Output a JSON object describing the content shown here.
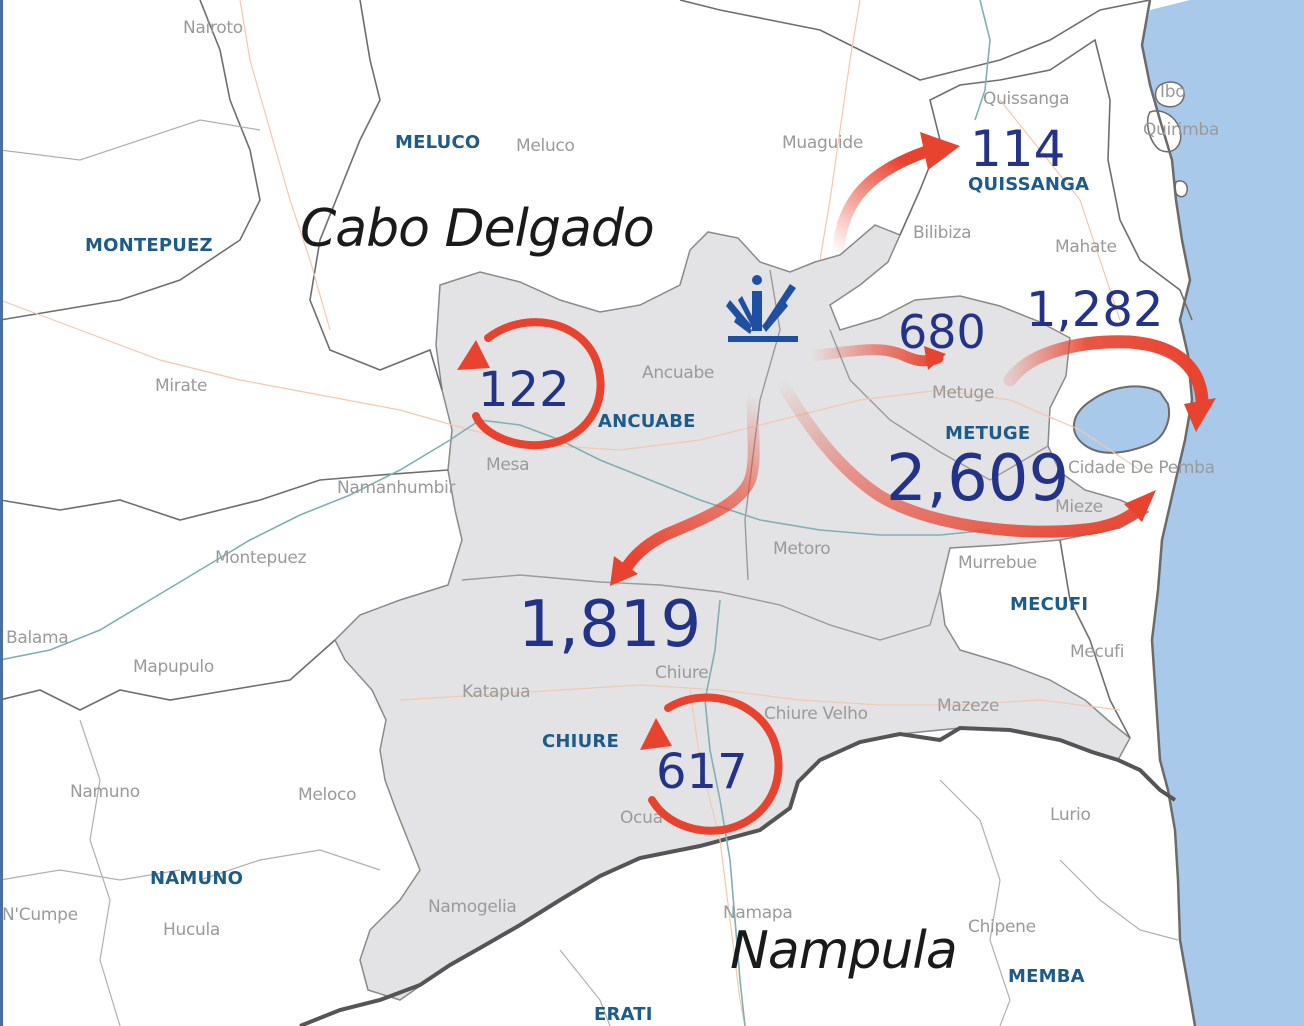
{
  "province_labels": {
    "cabo_delgado": "Cabo Delgado",
    "nampula": "Nampula"
  },
  "districts": {
    "meluco": "MELUCO",
    "montepuez": "MONTEPUEZ",
    "quissanga": "QUISSANGA",
    "ancuabe": "ANCUABE",
    "metuge": "METUGE",
    "mecufi": "MECUFI",
    "chiure": "CHIURE",
    "namuno": "NAMUNO",
    "memba": "MEMBA",
    "erati": "ERATI"
  },
  "towns": {
    "nairoto": "Nairoto",
    "meluco": "Meluco",
    "muaguide": "Muaguide",
    "quissanga": "Quissanga",
    "ibo": "Ibo",
    "quirimba": "Quirimba",
    "bilibiza": "Bilibiza",
    "mahate": "Mahate",
    "mirate": "Mirate",
    "ancuabe": "Ancuabe",
    "metuge": "Metuge",
    "mesa": "Mesa",
    "namanhumbir": "Namanhumbir",
    "montepuez": "Montepuez",
    "cidade_de_pemba": "Cidade De Pemba",
    "mieze": "Mieze",
    "metoro": "Metoro",
    "murrebue": "Murrebue",
    "balama": "Balama",
    "mapupulo": "Mapupulo",
    "mecufi": "Mecufi",
    "katapua": "Katapua",
    "chiure": "Chiure",
    "chiure_velho": "Chiure Velho",
    "mazeze": "Mazeze",
    "namuno": "Namuno",
    "meloco": "Meloco",
    "ocua": "Ocua",
    "lurio": "Lurio",
    "ncumpe": "N'Cumpe",
    "hucula": "Hucula",
    "namogelia": "Namogelia",
    "namapa": "Namapa",
    "chipene": "Chipene"
  },
  "displacement_counts": {
    "quissanga": "114",
    "metuge_local": "680",
    "pemba": "1,282",
    "metuge_to_pemba": "2,609",
    "ancuabe_internal": "122",
    "chiure": "1,819",
    "chiure_internal": "617"
  },
  "colors": {
    "affected_area": "#e3e3e5",
    "ocean": "#a9c9ea",
    "flow_arrow": "#e8432f",
    "count_text": "#23338a",
    "district_label": "#1d5b8a",
    "town_label": "#9a9a9a",
    "origin_icon": "#1f4fa0"
  },
  "icons": {
    "origin": "displacement-origin-icon"
  }
}
